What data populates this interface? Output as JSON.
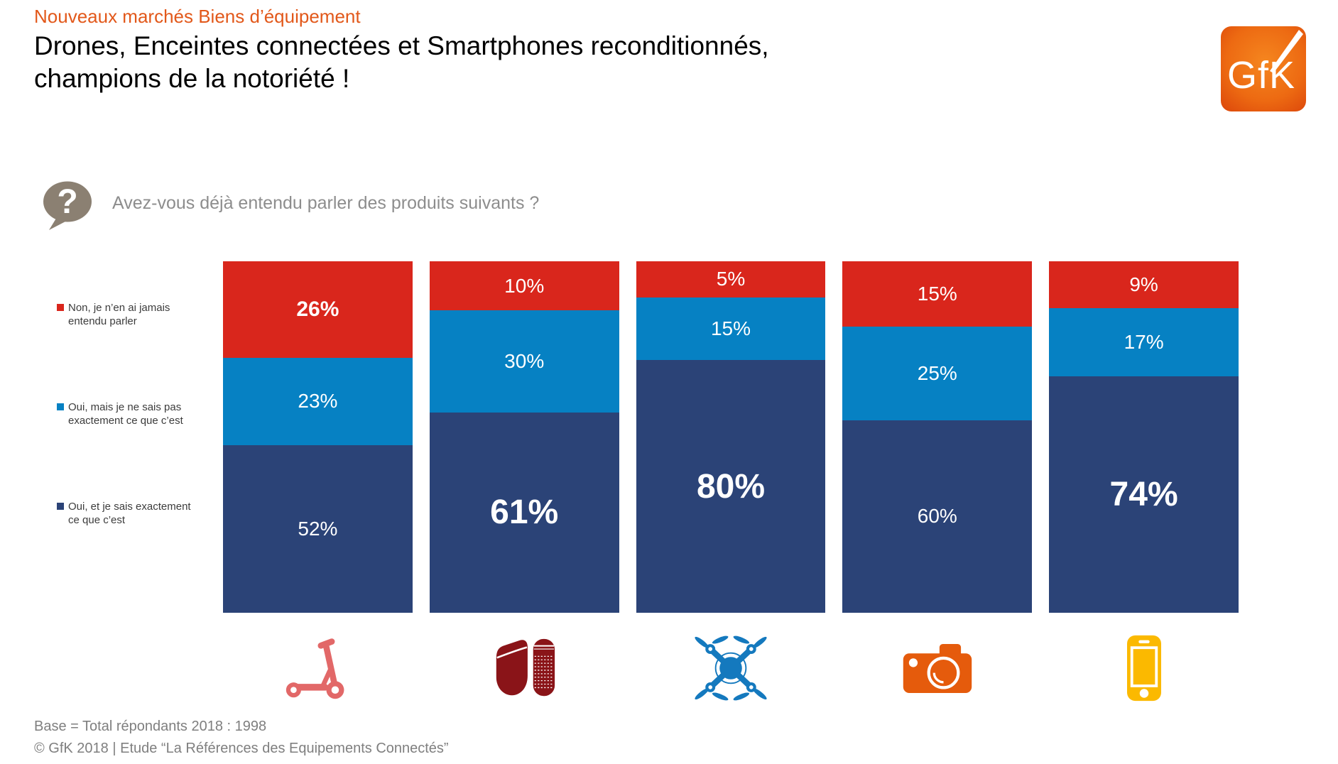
{
  "header": {
    "kicker": "Nouveaux marchés Biens d’équipement",
    "title_line1": "Drones, Enceintes connectées et Smartphones reconditionnés,",
    "title_line2": "champions de la notoriété !",
    "logo_text": "GfK"
  },
  "question": {
    "mark": "?",
    "text": "Avez-vous déjà entendu parler des produits suivants ?"
  },
  "legend": {
    "items": [
      {
        "lines": [
          "Non, je n’en ai jamais",
          "entendu parler"
        ]
      },
      {
        "lines": [
          "Oui, mais je ne sais pas",
          "exactement ce que c’est"
        ]
      },
      {
        "lines": [
          "Oui, et je sais exactement",
          "ce que c’est"
        ]
      }
    ]
  },
  "chart_data": {
    "type": "bar",
    "stacked": true,
    "percent": true,
    "orientation": "vertical",
    "legend_position": "left",
    "value_suffix": "%",
    "categories": [
      "electric-scooter",
      "smart-speakers",
      "drone",
      "connected-camera",
      "smartphone"
    ],
    "series": [
      {
        "name": "Non, je n’en ai jamais entendu parler",
        "color": "#D9261C",
        "values": [
          26,
          10,
          5,
          15,
          9
        ]
      },
      {
        "name": "Oui, mais je ne sais pas exactement ce que c’est",
        "color": "#0681C3",
        "values": [
          23,
          30,
          15,
          25,
          17
        ]
      },
      {
        "name": "Oui, et je sais exactement ce que c’est",
        "color": "#2B4377",
        "values": [
          52,
          61,
          80,
          60,
          74
        ]
      }
    ],
    "emphasized_labels": [
      "26%",
      "61%",
      "80%",
      "74%"
    ],
    "icon_colors": {
      "electric-scooter": "#E26868",
      "smart-speakers": "#8A1418",
      "drone": "#1479BE",
      "connected-camera": "#E55B0C",
      "smartphone": "#FBB900"
    }
  },
  "footer": {
    "base": "Base = Total répondants 2018 : 1998",
    "copyright": "© GfK 2018 | Etude “La Références des Equipements Connectés”"
  }
}
